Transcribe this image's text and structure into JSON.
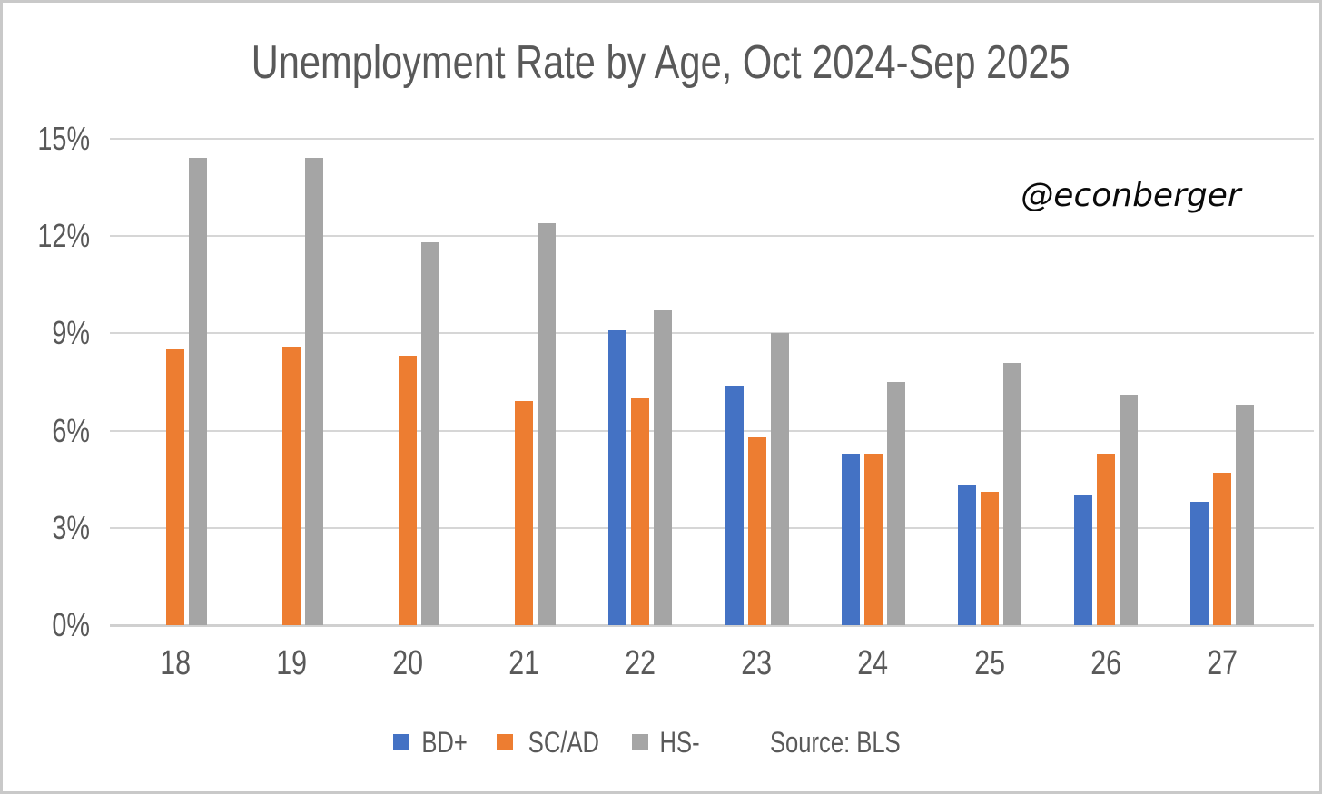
{
  "title": "Unemployment Rate by Age, Oct 2024-Sep 2025",
  "watermark": "@econberger",
  "source_label": "Source: BLS",
  "chart_data": {
    "type": "bar",
    "title": "Unemployment Rate by Age, Oct 2024-Sep 2025",
    "xlabel": "",
    "ylabel": "",
    "ylim": [
      0,
      15
    ],
    "yticks": [
      0,
      3,
      6,
      9,
      12,
      15
    ],
    "ytick_labels": [
      "0%",
      "3%",
      "6%",
      "9%",
      "12%",
      "15%"
    ],
    "grid": true,
    "legend_position": "bottom",
    "categories": [
      "18",
      "19",
      "20",
      "21",
      "22",
      "23",
      "24",
      "25",
      "26",
      "27"
    ],
    "series": [
      {
        "name": "BD+",
        "color": "#4472C4",
        "values": [
          null,
          null,
          null,
          null,
          9.1,
          7.4,
          5.3,
          4.3,
          4.0,
          3.8
        ]
      },
      {
        "name": "SC/AD",
        "color": "#ED7D31",
        "values": [
          8.5,
          8.6,
          8.3,
          6.9,
          7.0,
          5.8,
          5.3,
          4.1,
          5.3,
          4.7
        ]
      },
      {
        "name": "HS-",
        "color": "#A5A5A5",
        "values": [
          14.4,
          14.4,
          11.8,
          12.4,
          9.7,
          9.0,
          7.5,
          8.1,
          7.1,
          6.8
        ]
      }
    ],
    "source": "Source: BLS",
    "annotation": "@econberger"
  }
}
